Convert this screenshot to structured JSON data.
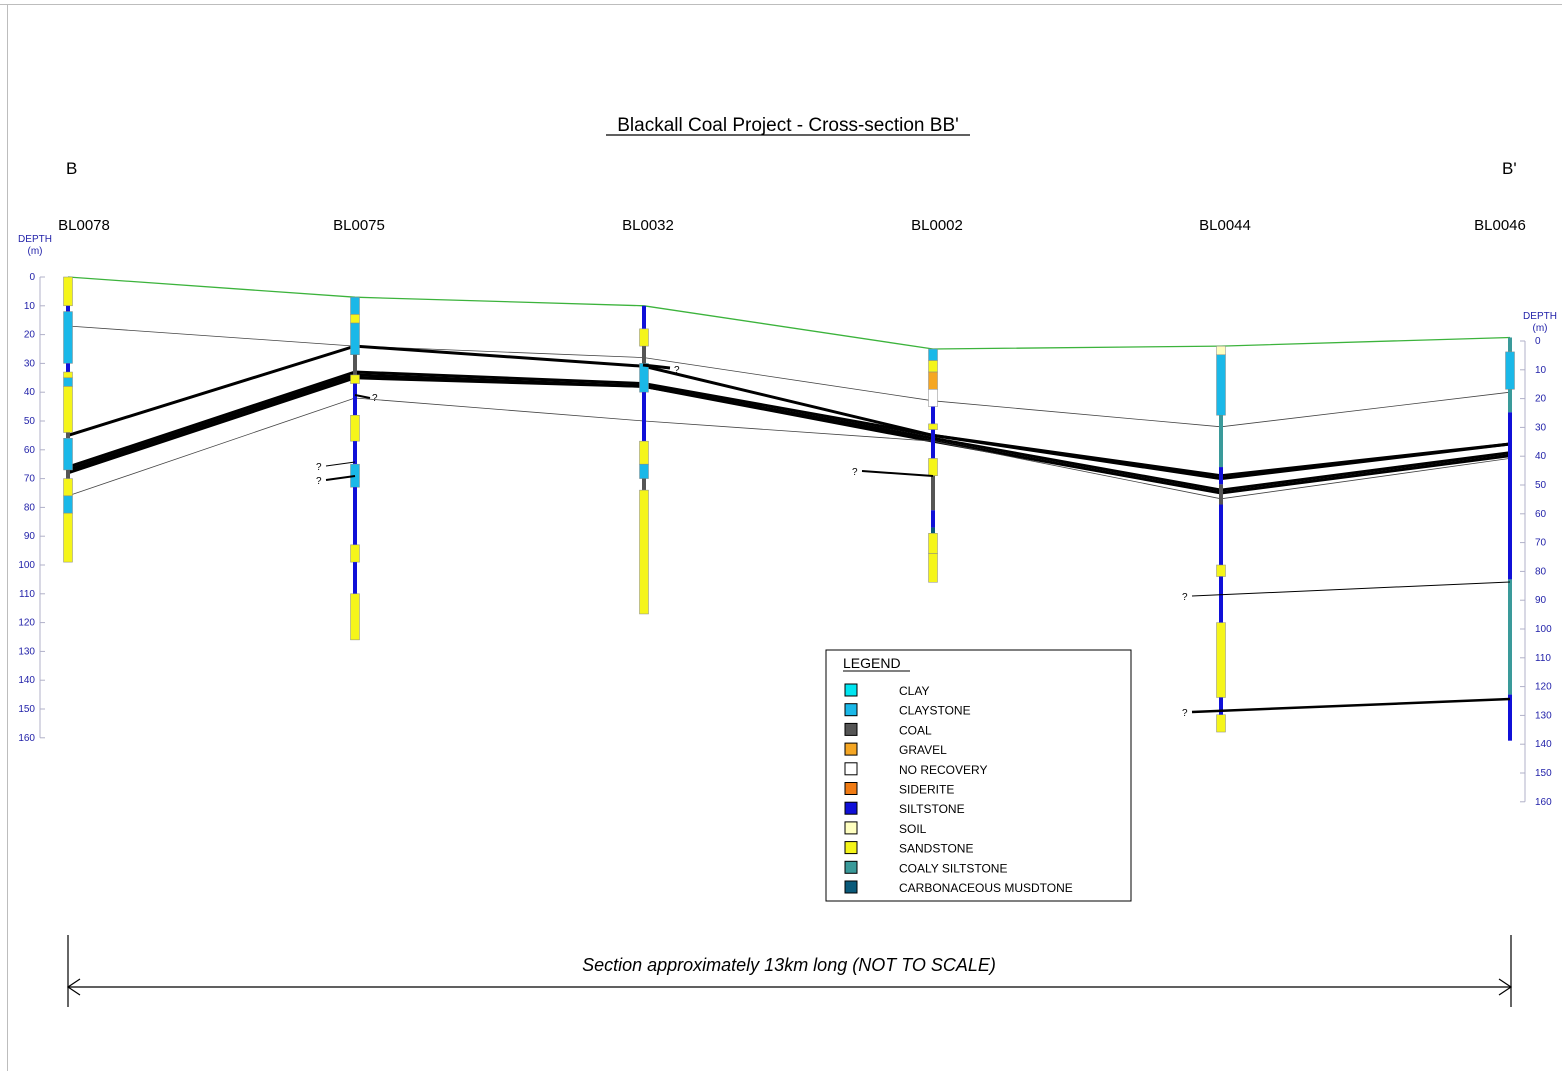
{
  "title": "Blackall Coal Project - Cross-section BB'",
  "end_labels": {
    "left": "B",
    "right": "B'"
  },
  "boreholes": [
    {
      "name": "BL0078",
      "collar_offset_m": 0,
      "total_depth_m": 99,
      "intervals": [
        {
          "from": 0,
          "to": 10,
          "lith": "sandstone"
        },
        {
          "from": 10,
          "to": 12,
          "lith": "siltstone"
        },
        {
          "from": 12,
          "to": 30,
          "lith": "claystone"
        },
        {
          "from": 30,
          "to": 33,
          "lith": "siltstone"
        },
        {
          "from": 33,
          "to": 35,
          "lith": "sandstone"
        },
        {
          "from": 35,
          "to": 38,
          "lith": "claystone"
        },
        {
          "from": 38,
          "to": 54,
          "lith": "sandstone"
        },
        {
          "from": 54,
          "to": 56,
          "lith": "coal"
        },
        {
          "from": 56,
          "to": 67,
          "lith": "claystone"
        },
        {
          "from": 67,
          "to": 70,
          "lith": "coal"
        },
        {
          "from": 70,
          "to": 76,
          "lith": "sandstone"
        },
        {
          "from": 76,
          "to": 82,
          "lith": "claystone"
        },
        {
          "from": 82,
          "to": 99,
          "lith": "sandstone"
        }
      ]
    },
    {
      "name": "BL0075",
      "collar_offset_m": 7,
      "total_depth_m": 119,
      "intervals": [
        {
          "from": 0,
          "to": 6,
          "lith": "claystone"
        },
        {
          "from": 6,
          "to": 9,
          "lith": "sandstone"
        },
        {
          "from": 9,
          "to": 20,
          "lith": "claystone"
        },
        {
          "from": 20,
          "to": 27,
          "lith": "coal"
        },
        {
          "from": 27,
          "to": 30,
          "lith": "sandstone"
        },
        {
          "from": 30,
          "to": 41,
          "lith": "siltstone"
        },
        {
          "from": 41,
          "to": 50,
          "lith": "sandstone"
        },
        {
          "from": 50,
          "to": 58,
          "lith": "siltstone"
        },
        {
          "from": 58,
          "to": 66,
          "lith": "claystone"
        },
        {
          "from": 66,
          "to": 86,
          "lith": "siltstone"
        },
        {
          "from": 86,
          "to": 92,
          "lith": "sandstone"
        },
        {
          "from": 92,
          "to": 103,
          "lith": "siltstone"
        },
        {
          "from": 103,
          "to": 119,
          "lith": "sandstone"
        }
      ]
    },
    {
      "name": "BL0032",
      "collar_offset_m": 10,
      "total_depth_m": 107,
      "intervals": [
        {
          "from": 0,
          "to": 8,
          "lith": "siltstone"
        },
        {
          "from": 8,
          "to": 14,
          "lith": "sandstone"
        },
        {
          "from": 14,
          "to": 20,
          "lith": "coal"
        },
        {
          "from": 20,
          "to": 30,
          "lith": "claystone"
        },
        {
          "from": 30,
          "to": 47,
          "lith": "siltstone"
        },
        {
          "from": 47,
          "to": 55,
          "lith": "sandstone"
        },
        {
          "from": 55,
          "to": 60,
          "lith": "claystone"
        },
        {
          "from": 60,
          "to": 64,
          "lith": "coal"
        },
        {
          "from": 64,
          "to": 107,
          "lith": "sandstone"
        }
      ]
    },
    {
      "name": "BL0002",
      "collar_offset_m": 25,
      "total_depth_m": 81,
      "intervals": [
        {
          "from": 0,
          "to": 4,
          "lith": "claystone"
        },
        {
          "from": 4,
          "to": 8,
          "lith": "sandstone"
        },
        {
          "from": 8,
          "to": 14,
          "lith": "gravel"
        },
        {
          "from": 14,
          "to": 20,
          "lith": "no_recovery"
        },
        {
          "from": 20,
          "to": 26,
          "lith": "siltstone"
        },
        {
          "from": 26,
          "to": 28,
          "lith": "sandstone"
        },
        {
          "from": 28,
          "to": 38,
          "lith": "siltstone"
        },
        {
          "from": 38,
          "to": 44,
          "lith": "sandstone"
        },
        {
          "from": 44,
          "to": 56,
          "lith": "coal"
        },
        {
          "from": 56,
          "to": 62,
          "lith": "siltstone"
        },
        {
          "from": 62,
          "to": 64,
          "lith": "carbonaceous_mudstone"
        },
        {
          "from": 64,
          "to": 71,
          "lith": "sandstone"
        },
        {
          "from": 71,
          "to": 81,
          "lith": "sandstone"
        }
      ]
    },
    {
      "name": "BL0044",
      "collar_offset_m": 24,
      "total_depth_m": 134,
      "intervals": [
        {
          "from": 0,
          "to": 3,
          "lith": "soil"
        },
        {
          "from": 3,
          "to": 24,
          "lith": "claystone"
        },
        {
          "from": 24,
          "to": 42,
          "lith": "coaly_siltstone"
        },
        {
          "from": 42,
          "to": 48,
          "lith": "siltstone"
        },
        {
          "from": 48,
          "to": 55,
          "lith": "coal"
        },
        {
          "from": 55,
          "to": 76,
          "lith": "siltstone"
        },
        {
          "from": 76,
          "to": 80,
          "lith": "sandstone"
        },
        {
          "from": 80,
          "to": 96,
          "lith": "siltstone"
        },
        {
          "from": 96,
          "to": 122,
          "lith": "sandstone"
        },
        {
          "from": 122,
          "to": 128,
          "lith": "siltstone"
        },
        {
          "from": 128,
          "to": 134,
          "lith": "sandstone"
        }
      ]
    },
    {
      "name": "BL0046",
      "collar_offset_m": 21,
      "total_depth_m": 140,
      "intervals": [
        {
          "from": 0,
          "to": 5,
          "lith": "coaly_siltstone"
        },
        {
          "from": 5,
          "to": 18,
          "lith": "claystone"
        },
        {
          "from": 18,
          "to": 26,
          "lith": "coaly_siltstone"
        },
        {
          "from": 26,
          "to": 84,
          "lith": "siltstone"
        },
        {
          "from": 84,
          "to": 124,
          "lith": "coaly_siltstone"
        },
        {
          "from": 124,
          "to": 140,
          "lith": "siltstone"
        }
      ]
    }
  ],
  "left_axis": {
    "title_line1": "DEPTH",
    "title_line2": "(m)",
    "ticks": [
      "0",
      "10",
      "20",
      "30",
      "40",
      "50",
      "60",
      "70",
      "80",
      "90",
      "100",
      "110",
      "120",
      "130",
      "140",
      "150",
      "160"
    ]
  },
  "right_axis": {
    "title_line1": "DEPTH",
    "title_line2": "(m)",
    "ticks": [
      "0",
      "10",
      "20",
      "30",
      "40",
      "50",
      "60",
      "70",
      "80",
      "90",
      "100",
      "110",
      "120",
      "130",
      "140",
      "150",
      "160"
    ]
  },
  "correlations": [
    {
      "kind": "surface",
      "color": "#3cb33c",
      "depths_m": [
        0,
        7,
        10,
        25,
        24,
        21
      ]
    },
    {
      "kind": "thin",
      "depths_m": [
        17,
        24,
        28,
        43,
        52,
        40
      ]
    },
    {
      "kind": "thick",
      "depths_m": [
        55,
        24,
        31,
        55,
        69,
        58
      ]
    },
    {
      "kind": "thick",
      "depths_m": [
        66,
        33,
        37,
        55,
        70,
        58
      ]
    },
    {
      "kind": "thick",
      "depths_m": [
        67,
        34,
        38,
        56,
        74,
        61
      ]
    },
    {
      "kind": "thick",
      "depths_m": [
        68,
        35,
        38,
        57,
        75,
        62
      ]
    },
    {
      "kind": "thin",
      "depths_m": [
        76,
        42,
        50,
        57,
        77,
        63
      ]
    }
  ],
  "question_marks": [
    "?",
    "?",
    "?",
    "?",
    "?",
    "?",
    "?"
  ],
  "legend": {
    "title": "LEGEND",
    "items": [
      {
        "label": "CLAY",
        "color": "#00e5f0"
      },
      {
        "label": "CLAYSTONE",
        "color": "#1ab8e8"
      },
      {
        "label": "COAL",
        "color": "#555555"
      },
      {
        "label": "GRAVEL",
        "color": "#f5a623"
      },
      {
        "label": "NO RECOVERY",
        "color": "#ffffff"
      },
      {
        "label": "SIDERITE",
        "color": "#f07b14"
      },
      {
        "label": "SILTSTONE",
        "color": "#1010d8"
      },
      {
        "label": "SOIL",
        "color": "#ffffc0"
      },
      {
        "label": "SANDSTONE",
        "color": "#f5f51a"
      },
      {
        "label": "COALY SILTSTONE",
        "color": "#3a9a9a"
      },
      {
        "label": "CARBONACEOUS MUSDTONE",
        "color": "#0a5a7a"
      }
    ]
  },
  "note": "Section approximately 13km long (NOT TO SCALE)"
}
